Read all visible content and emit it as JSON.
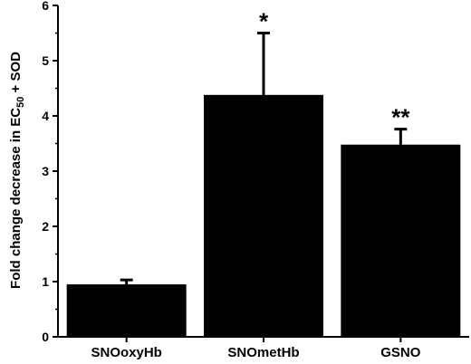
{
  "chart_data": {
    "type": "bar",
    "categories": [
      "SNOoxyHb",
      "SNOmetHb",
      "GSNO"
    ],
    "values": [
      0.95,
      4.38,
      3.48
    ],
    "errors": [
      0.08,
      1.12,
      0.28
    ],
    "annotations": [
      "",
      "*",
      "**"
    ],
    "ylabel_parts": {
      "main": "Fold change decrease in EC",
      "sub": "50",
      "tail": " + SOD"
    },
    "ylim": [
      0,
      6
    ],
    "yticks": [
      "0",
      "1",
      "2",
      "3",
      "4",
      "5",
      "6"
    ],
    "grid": false,
    "bar_color": "#000000"
  }
}
